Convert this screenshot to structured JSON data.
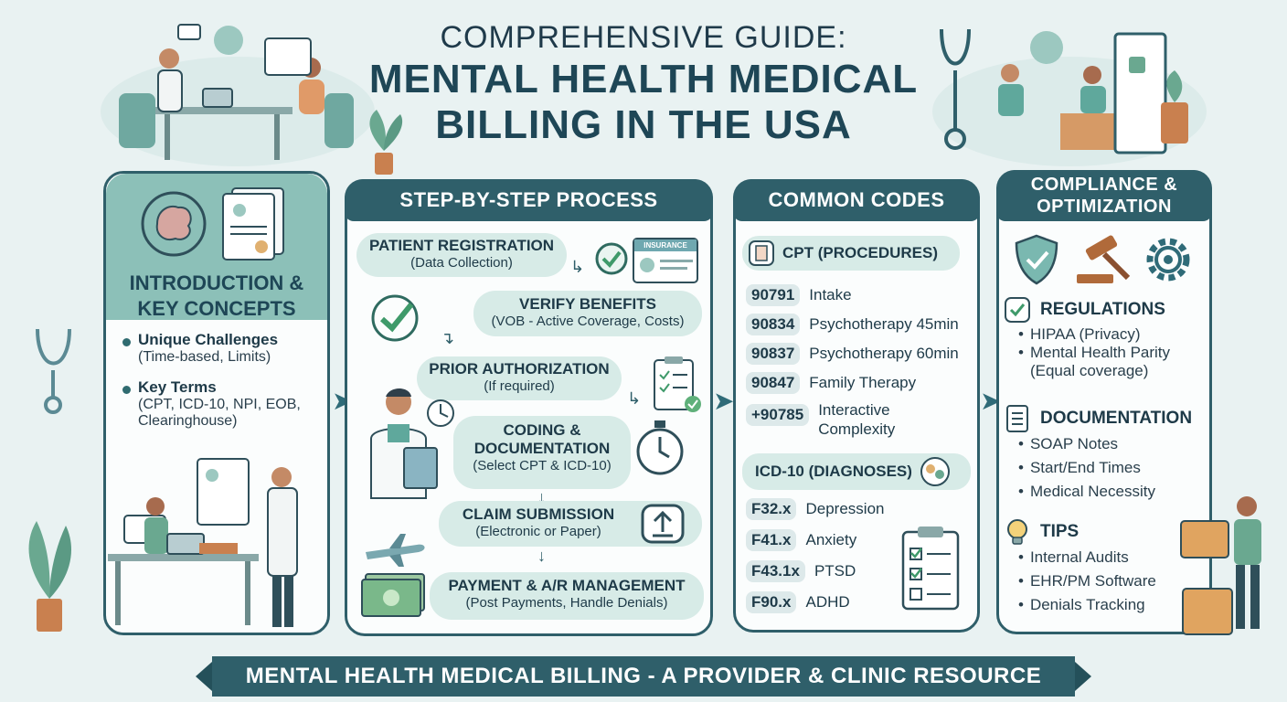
{
  "header": {
    "subtitle": "COMPREHENSIVE GUIDE:",
    "title_line1": "MENTAL HEALTH MEDICAL",
    "title_line2": "BILLING IN THE USA"
  },
  "intro": {
    "title_line1": "INTRODUCTION &",
    "title_line2": "KEY CONCEPTS",
    "bullets": [
      {
        "main": "Unique Challenges",
        "sub": "(Time-based, Limits)"
      },
      {
        "main": "Key Terms",
        "sub": "(CPT, ICD-10, NPI, EOB, Clearinghouse)"
      }
    ]
  },
  "process": {
    "tab": "STEP-BY-STEP PROCESS",
    "insurance_card": "INSURANCE",
    "steps": [
      {
        "main": "PATIENT REGISTRATION",
        "sub": "(Data Collection)"
      },
      {
        "main": "VERIFY BENEFITS",
        "sub": "(VOB - Active Coverage, Costs)"
      },
      {
        "main": "PRIOR AUTHORIZATION",
        "sub": "(If required)"
      },
      {
        "main": "CODING &",
        "main2": "DOCUMENTATION",
        "sub": "(Select CPT & ICD-10)"
      },
      {
        "main": "CLAIM SUBMISSION",
        "sub": "(Electronic or Paper)"
      },
      {
        "main": "PAYMENT & A/R MANAGEMENT",
        "sub": "(Post Payments, Handle Denials)"
      }
    ]
  },
  "codes": {
    "tab": "COMMON CODES",
    "cpt_title": "CPT (PROCEDURES)",
    "cpt": [
      {
        "code": "90791",
        "desc": "Intake"
      },
      {
        "code": "90834",
        "desc": "Psychotherapy 45min"
      },
      {
        "code": "90837",
        "desc": "Psychotherapy 60min"
      },
      {
        "code": "90847",
        "desc": "Family Therapy"
      },
      {
        "code": "+90785",
        "desc": "Interactive Complexity"
      }
    ],
    "icd_title": "ICD-10 (DIAGNOSES)",
    "icd": [
      {
        "code": "F32.x",
        "desc": "Depression"
      },
      {
        "code": "F41.x",
        "desc": "Anxiety"
      },
      {
        "code": "F43.1x",
        "desc": "PTSD"
      },
      {
        "code": "F90.x",
        "desc": "ADHD"
      }
    ]
  },
  "compliance": {
    "tab_line1": "COMPLIANCE &",
    "tab_line2": "OPTIMIZATION",
    "sections": [
      {
        "title": "REGULATIONS",
        "items": [
          "HIPAA (Privacy)",
          "Mental Health Parity (Equal coverage)"
        ]
      },
      {
        "title": "DOCUMENTATION",
        "items": [
          "SOAP Notes",
          "Start/End Times",
          "Medical Necessity"
        ]
      },
      {
        "title": "TIPS",
        "items": [
          "Internal Audits",
          "EHR/PM Software",
          "Denials Tracking"
        ]
      }
    ]
  },
  "footer": {
    "text": "MENTAL HEALTH MEDICAL BILLING - A PROVIDER & CLINIC RESOURCE"
  },
  "colors": {
    "primary": "#2f5f6a",
    "accent": "#8cc0b8",
    "step_bg": "#d7ebe7",
    "background": "#e9f2f2"
  },
  "icons": [
    "brain-icon",
    "document-icon",
    "check-icon",
    "clipboard-icon",
    "clock-icon",
    "upload-icon",
    "airplane-icon",
    "money-icon",
    "shield-icon",
    "gavel-icon",
    "gear-icon",
    "lightbulb-icon",
    "stethoscope-icon",
    "plant-icon"
  ]
}
